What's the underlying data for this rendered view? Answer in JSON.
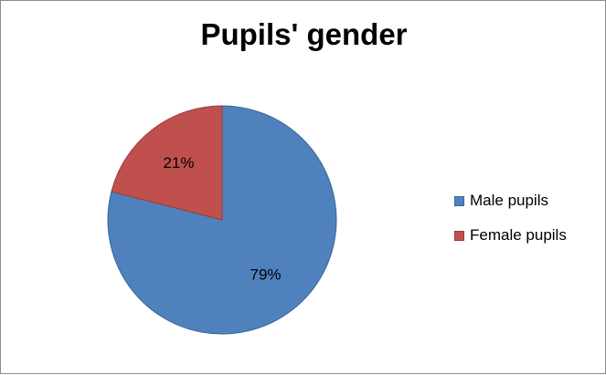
{
  "chart_data": {
    "type": "pie",
    "title": "Pupils' gender",
    "categories": [
      "Male pupils",
      "Female pupils"
    ],
    "values": [
      79,
      21
    ],
    "data_labels": [
      "79%",
      "21%"
    ],
    "colors": [
      "#4f81bd",
      "#c0504d"
    ],
    "border_colors": [
      "#3a669c",
      "#9c3a37"
    ],
    "legend_position": "right"
  }
}
